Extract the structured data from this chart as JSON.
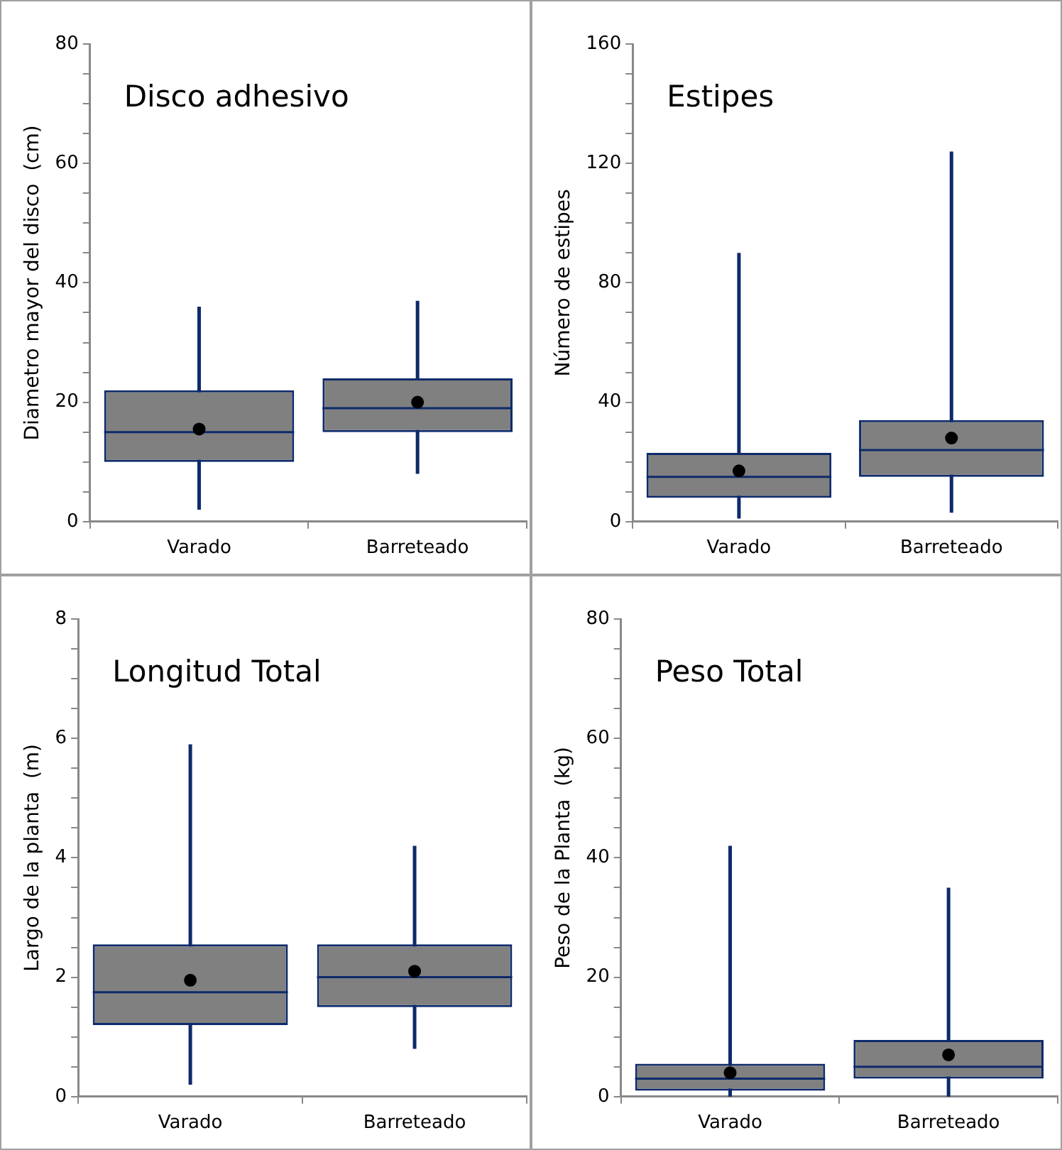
{
  "chart_data": [
    {
      "type": "box",
      "title": "Disco adhesivo",
      "ylabel": "Diametro mayor del disco  (cm)",
      "categories": [
        "Varado",
        "Barreteado"
      ],
      "color": "#808080",
      "boxes": [
        {
          "low": 2,
          "q1": 10,
          "median": 15,
          "q3": 22,
          "high": 36,
          "mean": 15.5
        },
        {
          "low": 8,
          "q1": 15,
          "median": 19,
          "q3": 24,
          "high": 37,
          "mean": 20
        }
      ],
      "ylim": [
        0,
        80
      ],
      "yticks": [
        0,
        {
          "value": 5,
          "label": null
        },
        {
          "value": 10,
          "label": null
        },
        {
          "value": 15,
          "label": null
        },
        20,
        {
          "value": 25,
          "label": null
        },
        {
          "value": 30,
          "label": null
        },
        {
          "value": 35,
          "label": null
        },
        40,
        {
          "value": 45,
          "label": null
        },
        {
          "value": 50,
          "label": null
        },
        {
          "value": 55,
          "label": null
        },
        60,
        {
          "value": 65,
          "label": null
        },
        {
          "value": 70,
          "label": null
        },
        {
          "value": 75,
          "label": null
        },
        80
      ]
    },
    {
      "type": "box",
      "title": "Estipes",
      "ylabel": "Número de estipes",
      "categories": [
        "Varado",
        "Barreteado"
      ],
      "color": "#808080",
      "boxes": [
        {
          "low": 1,
          "q1": 8,
          "median": 15,
          "q3": 23,
          "high": 90,
          "mean": 17
        },
        {
          "low": 3,
          "q1": 15,
          "median": 24,
          "q3": 34,
          "high": 124,
          "mean": 28
        }
      ],
      "ylim": [
        0,
        160
      ],
      "yticks": [
        0,
        {
          "value": 10,
          "label": null
        },
        {
          "value": 20,
          "label": null
        },
        {
          "value": 30,
          "label": null
        },
        40,
        {
          "value": 50,
          "label": null
        },
        {
          "value": 60,
          "label": null
        },
        {
          "value": 70,
          "label": null
        },
        80,
        {
          "value": 90,
          "label": null
        },
        {
          "value": 100,
          "label": null
        },
        {
          "value": 110,
          "label": null
        },
        120,
        {
          "value": 130,
          "label": null
        },
        {
          "value": 140,
          "label": null
        },
        {
          "value": 150,
          "label": null
        },
        160
      ]
    },
    {
      "type": "box",
      "title": "Longitud Total",
      "ylabel": "Largo de la planta  (m)",
      "categories": [
        "Varado",
        "Barreteado"
      ],
      "color": "#808080",
      "boxes": [
        {
          "low": 0.2,
          "q1": 1.2,
          "median": 1.75,
          "q3": 2.55,
          "high": 5.9,
          "mean": 1.95
        },
        {
          "low": 0.8,
          "q1": 1.5,
          "median": 2.0,
          "q3": 2.55,
          "high": 4.2,
          "mean": 2.1
        }
      ],
      "ylim": [
        0,
        8
      ],
      "yticks": [
        0,
        {
          "value": 0.5,
          "label": null
        },
        {
          "value": 1,
          "label": null
        },
        {
          "value": 1.5,
          "label": null
        },
        2,
        {
          "value": 2.5,
          "label": null
        },
        {
          "value": 3,
          "label": null
        },
        {
          "value": 3.5,
          "label": null
        },
        4,
        {
          "value": 4.5,
          "label": null
        },
        {
          "value": 5,
          "label": null
        },
        {
          "value": 5.5,
          "label": null
        },
        6,
        {
          "value": 6.5,
          "label": null
        },
        {
          "value": 7,
          "label": null
        },
        {
          "value": 7.5,
          "label": null
        },
        8
      ]
    },
    {
      "type": "box",
      "title": "Peso Total",
      "ylabel": "Peso de la Planta  (kg)",
      "categories": [
        "Varado",
        "Barreteado"
      ],
      "color": "#808080",
      "boxes": [
        {
          "low": 0,
          "q1": 1,
          "median": 3,
          "q3": 5.5,
          "high": 42,
          "mean": 4
        },
        {
          "low": 0,
          "q1": 3,
          "median": 5,
          "q3": 9.5,
          "high": 35,
          "mean": 7
        }
      ],
      "ylim": [
        0,
        80
      ],
      "yticks": [
        0,
        {
          "value": 5,
          "label": null
        },
        {
          "value": 10,
          "label": null
        },
        {
          "value": 15,
          "label": null
        },
        20,
        {
          "value": 25,
          "label": null
        },
        {
          "value": 30,
          "label": null
        },
        {
          "value": 35,
          "label": null
        },
        40,
        {
          "value": 45,
          "label": null
        },
        {
          "value": 50,
          "label": null
        },
        {
          "value": 55,
          "label": null
        },
        60,
        {
          "value": 65,
          "label": null
        },
        {
          "value": 70,
          "label": null
        },
        {
          "value": 75,
          "label": null
        },
        80
      ]
    }
  ]
}
